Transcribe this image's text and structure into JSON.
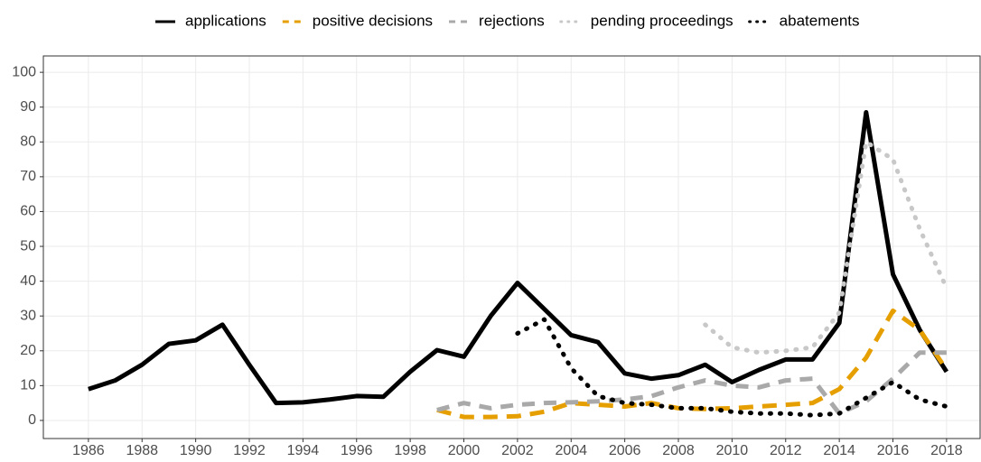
{
  "chart_data": {
    "type": "line",
    "x": [
      1986,
      1987,
      1988,
      1989,
      1990,
      1991,
      1992,
      1993,
      1994,
      1995,
      1996,
      1997,
      1998,
      1999,
      2000,
      2001,
      2002,
      2003,
      2004,
      2005,
      2006,
      2007,
      2008,
      2009,
      2010,
      2011,
      2012,
      2013,
      2014,
      2015,
      2016,
      2017,
      2018
    ],
    "series": [
      {
        "name": "applications",
        "color": "#000000",
        "dash": "solid",
        "values": [
          9,
          11.5,
          16,
          22,
          23,
          27.5,
          16,
          5,
          5.2,
          6,
          7,
          6.8,
          14,
          20.2,
          18.3,
          30,
          39.5,
          32,
          24.5,
          22.5,
          13.5,
          12,
          13,
          16,
          11,
          14.5,
          17.5,
          17.5,
          28,
          88.5,
          42,
          26,
          14
        ]
      },
      {
        "name": "positive decisions",
        "color": "#e69f00",
        "dash": "long",
        "values": [
          null,
          null,
          null,
          null,
          null,
          null,
          null,
          null,
          null,
          null,
          null,
          null,
          null,
          3,
          1,
          1,
          1.2,
          2.5,
          5,
          4.5,
          4,
          5,
          3.5,
          3.3,
          3.5,
          4,
          4.5,
          5,
          9,
          18,
          31.5,
          26,
          14.5
        ]
      },
      {
        "name": "rejections",
        "color": "#a9a9a9",
        "dash": "dashed",
        "values": [
          null,
          null,
          null,
          null,
          null,
          null,
          null,
          null,
          null,
          null,
          null,
          null,
          null,
          3,
          5,
          3.5,
          4.5,
          5,
          5.2,
          5.5,
          6,
          7,
          9.5,
          11.5,
          10,
          9.5,
          11.5,
          12,
          2,
          5.5,
          12,
          19.5,
          19.5
        ]
      },
      {
        "name": "pending proceedings",
        "color": "#c8c8c8",
        "dash": "dotted",
        "values": [
          null,
          null,
          null,
          null,
          null,
          null,
          null,
          null,
          null,
          null,
          null,
          null,
          null,
          null,
          null,
          null,
          null,
          null,
          null,
          null,
          null,
          null,
          null,
          27.5,
          21,
          19.5,
          20,
          21,
          31,
          80,
          75,
          55,
          38
        ]
      },
      {
        "name": "abatements",
        "color": "#000000",
        "dash": "dotted",
        "values": [
          null,
          null,
          null,
          null,
          null,
          null,
          null,
          null,
          null,
          null,
          null,
          null,
          null,
          null,
          null,
          null,
          25,
          29,
          15,
          7,
          5,
          4.5,
          3.5,
          3.5,
          2.5,
          2,
          2,
          1.5,
          2,
          6.5,
          11,
          6,
          4
        ]
      }
    ],
    "xlim": [
      1984.32,
      2019.25
    ],
    "xticks": [
      1986,
      1988,
      1990,
      1992,
      1994,
      1996,
      1998,
      2000,
      2002,
      2004,
      2006,
      2008,
      2010,
      2012,
      2014,
      2016,
      2018
    ],
    "ylim": [
      -5.2,
      104.7
    ],
    "yticks": [
      0,
      10,
      20,
      30,
      40,
      50,
      60,
      70,
      80,
      90,
      100
    ],
    "grid": true,
    "legend": "top"
  }
}
